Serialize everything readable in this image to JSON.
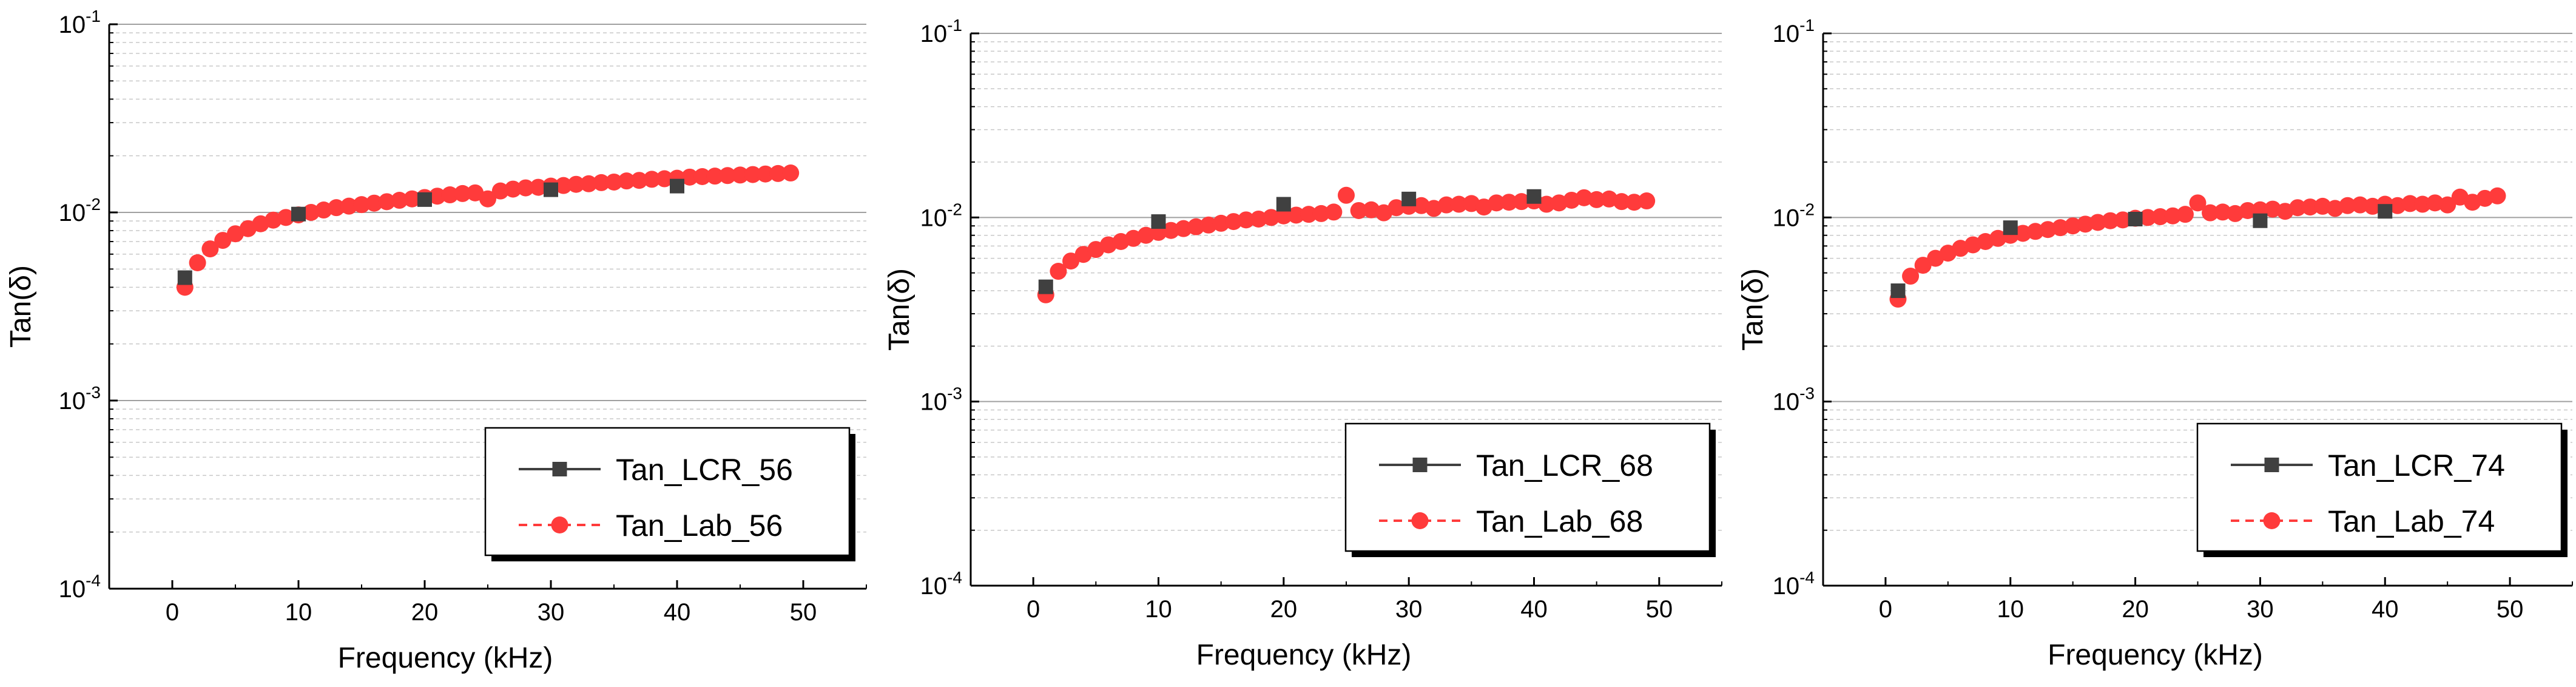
{
  "chart_data": [
    {
      "type": "scatter",
      "xlabel": "Frequency (kHz)",
      "ylabel": "Tan(δ)",
      "yscale": "log",
      "xlim": [
        -5,
        55
      ],
      "ylim": [
        0.0001,
        0.1
      ],
      "xticks": [
        0,
        10,
        20,
        30,
        40,
        50
      ],
      "yticks": [
        {
          "value": 0.0001,
          "base": "10",
          "exp": "-4"
        },
        {
          "value": 0.001,
          "base": "10",
          "exp": "-3"
        },
        {
          "value": 0.01,
          "base": "10",
          "exp": "-2"
        },
        {
          "value": 0.1,
          "base": "10",
          "exp": "-1"
        }
      ],
      "grid": true,
      "legend_position": "bottom-right",
      "series": [
        {
          "name": "Tan_LCR_56",
          "marker": "square",
          "color": "#404040",
          "line": "solid",
          "x": [
            1,
            10,
            20,
            30,
            40
          ],
          "y": [
            0.0045,
            0.0098,
            0.0117,
            0.0132,
            0.0138
          ]
        },
        {
          "name": "Tan_Lab_56",
          "marker": "circle",
          "color": "#ff3b3b",
          "line": "dashed",
          "x": [
            1,
            2,
            3,
            4,
            5,
            6,
            7,
            8,
            9,
            10,
            11,
            12,
            13,
            14,
            15,
            16,
            17,
            18,
            19,
            20,
            21,
            22,
            23,
            24,
            25,
            26,
            27,
            28,
            29,
            30,
            31,
            32,
            33,
            34,
            35,
            36,
            37,
            38,
            39,
            40,
            41,
            42,
            43,
            44,
            45,
            46,
            47,
            48,
            49
          ],
          "y": [
            0.004,
            0.0054,
            0.0064,
            0.0071,
            0.0077,
            0.0082,
            0.0087,
            0.0091,
            0.0094,
            0.0097,
            0.01,
            0.0103,
            0.0106,
            0.0108,
            0.011,
            0.0112,
            0.0114,
            0.0116,
            0.0118,
            0.012,
            0.0122,
            0.0124,
            0.0126,
            0.0127,
            0.0118,
            0.013,
            0.0133,
            0.0135,
            0.0136,
            0.0138,
            0.0139,
            0.0141,
            0.0142,
            0.0144,
            0.0145,
            0.0147,
            0.0148,
            0.015,
            0.0151,
            0.0152,
            0.0154,
            0.0155,
            0.0156,
            0.0157,
            0.0158,
            0.0159,
            0.016,
            0.0161,
            0.0162
          ]
        }
      ]
    },
    {
      "type": "scatter",
      "xlabel": "Frequency (kHz)",
      "ylabel": "Tan(δ)",
      "yscale": "log",
      "xlim": [
        -5,
        55
      ],
      "ylim": [
        0.0001,
        0.1
      ],
      "xticks": [
        0,
        10,
        20,
        30,
        40,
        50
      ],
      "yticks": [
        {
          "value": 0.0001,
          "base": "10",
          "exp": "-4"
        },
        {
          "value": 0.001,
          "base": "10",
          "exp": "-3"
        },
        {
          "value": 0.01,
          "base": "10",
          "exp": "-2"
        },
        {
          "value": 0.1,
          "base": "10",
          "exp": "-1"
        }
      ],
      "grid": true,
      "legend_position": "bottom-right",
      "series": [
        {
          "name": "Tan_LCR_68",
          "marker": "square",
          "color": "#404040",
          "line": "solid",
          "x": [
            1,
            10,
            20,
            30,
            40
          ],
          "y": [
            0.0042,
            0.0095,
            0.0118,
            0.0126,
            0.013
          ]
        },
        {
          "name": "Tan_Lab_68",
          "marker": "circle",
          "color": "#ff3b3b",
          "line": "dashed",
          "x": [
            1,
            2,
            3,
            4,
            5,
            6,
            7,
            8,
            9,
            10,
            11,
            12,
            13,
            14,
            15,
            16,
            17,
            18,
            19,
            20,
            21,
            22,
            23,
            24,
            25,
            26,
            27,
            28,
            29,
            30,
            31,
            32,
            33,
            34,
            35,
            36,
            37,
            38,
            39,
            40,
            41,
            42,
            43,
            44,
            45,
            46,
            47,
            48,
            49
          ],
          "y": [
            0.0038,
            0.0051,
            0.0058,
            0.0063,
            0.0067,
            0.0071,
            0.0074,
            0.0077,
            0.008,
            0.0083,
            0.0085,
            0.0087,
            0.0089,
            0.0091,
            0.0093,
            0.0095,
            0.0097,
            0.0098,
            0.01,
            0.0102,
            0.0103,
            0.0104,
            0.0105,
            0.0107,
            0.0132,
            0.0109,
            0.011,
            0.0106,
            0.0113,
            0.0115,
            0.0116,
            0.0112,
            0.0117,
            0.0118,
            0.0119,
            0.0114,
            0.012,
            0.0121,
            0.0122,
            0.0123,
            0.0118,
            0.012,
            0.0124,
            0.0128,
            0.0125,
            0.0126,
            0.0122,
            0.0121,
            0.0123
          ]
        }
      ]
    },
    {
      "type": "scatter",
      "xlabel": "Frequency (kHz)",
      "ylabel": "Tan(δ)",
      "yscale": "log",
      "xlim": [
        -5,
        55
      ],
      "ylim": [
        0.0001,
        0.1
      ],
      "xticks": [
        0,
        10,
        20,
        30,
        40,
        50
      ],
      "yticks": [
        {
          "value": 0.0001,
          "base": "10",
          "exp": "-4"
        },
        {
          "value": 0.001,
          "base": "10",
          "exp": "-3"
        },
        {
          "value": 0.01,
          "base": "10",
          "exp": "-2"
        },
        {
          "value": 0.1,
          "base": "10",
          "exp": "-1"
        }
      ],
      "grid": true,
      "legend_position": "bottom-right",
      "series": [
        {
          "name": "Tan_LCR_74",
          "marker": "square",
          "color": "#404040",
          "line": "solid",
          "x": [
            1,
            10,
            20,
            30,
            40
          ],
          "y": [
            0.004,
            0.0088,
            0.0098,
            0.0096,
            0.0108
          ]
        },
        {
          "name": "Tan_Lab_74",
          "marker": "circle",
          "color": "#ff3b3b",
          "line": "dashed",
          "x": [
            1,
            2,
            3,
            4,
            5,
            6,
            7,
            8,
            9,
            10,
            11,
            12,
            13,
            14,
            15,
            16,
            17,
            18,
            19,
            20,
            21,
            22,
            23,
            24,
            25,
            26,
            27,
            28,
            29,
            30,
            31,
            32,
            33,
            34,
            35,
            36,
            37,
            38,
            39,
            40,
            41,
            42,
            43,
            44,
            45,
            46,
            47,
            48,
            49
          ],
          "y": [
            0.0036,
            0.0048,
            0.0055,
            0.006,
            0.0064,
            0.0068,
            0.0071,
            0.0074,
            0.0077,
            0.008,
            0.0082,
            0.0084,
            0.0086,
            0.0088,
            0.009,
            0.0092,
            0.0094,
            0.0096,
            0.0097,
            0.0099,
            0.01,
            0.0101,
            0.0102,
            0.0104,
            0.012,
            0.0106,
            0.0107,
            0.0105,
            0.0109,
            0.011,
            0.0111,
            0.0108,
            0.0113,
            0.0114,
            0.0115,
            0.0112,
            0.0116,
            0.0117,
            0.0115,
            0.0118,
            0.0116,
            0.0119,
            0.0118,
            0.012,
            0.0117,
            0.0129,
            0.0121,
            0.0127,
            0.0131
          ]
        }
      ]
    }
  ]
}
